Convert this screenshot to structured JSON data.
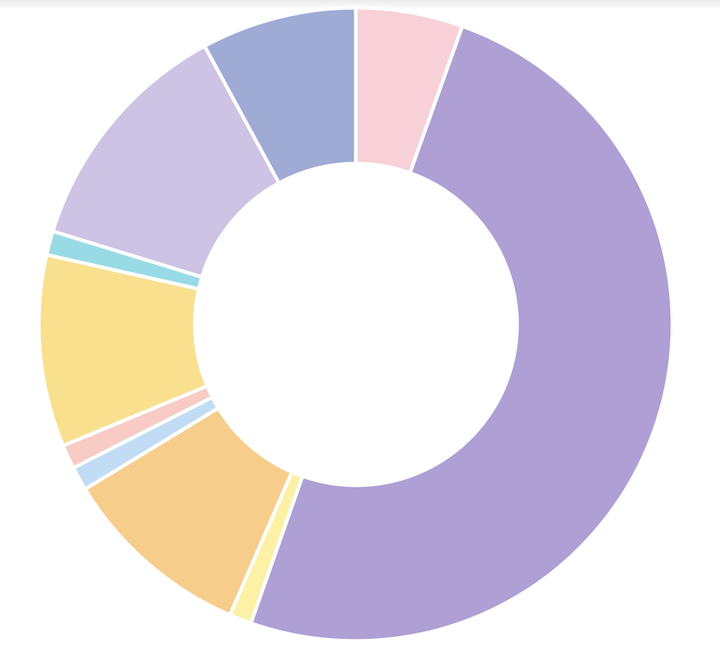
{
  "chart_data": {
    "type": "pie",
    "variant": "donut",
    "title": "",
    "legend": "none",
    "start_direction": "top",
    "direction": "clockwise",
    "slices": [
      {
        "value": 5.8,
        "color": "#f7d1d7"
      },
      {
        "value": 53.0,
        "color": "#ae9fd5"
      },
      {
        "value": 1.2,
        "color": "#fcf1a5"
      },
      {
        "value": 10.4,
        "color": "#f7cd8c"
      },
      {
        "value": 1.3,
        "color": "#c1ddf5"
      },
      {
        "value": 1.3,
        "color": "#f8cbc4"
      },
      {
        "value": 10.4,
        "color": "#f9e08f"
      },
      {
        "value": 1.3,
        "color": "#98dbe6"
      },
      {
        "value": 13.1,
        "color": "#cdc3e5"
      },
      {
        "value": 8.4,
        "color": "#9faad5"
      }
    ]
  }
}
